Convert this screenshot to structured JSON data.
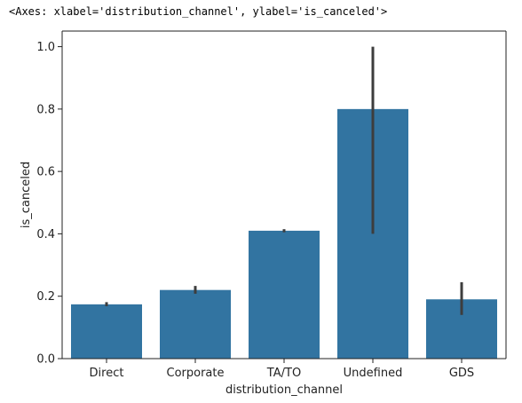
{
  "header": {
    "repr": "<Axes: xlabel='distribution_channel', ylabel='is_canceled'>"
  },
  "chart_data": {
    "type": "bar",
    "categories": [
      "Direct",
      "Corporate",
      "TA/TO",
      "Undefined",
      "GDS"
    ],
    "values": [
      0.174,
      0.22,
      0.41,
      0.8,
      0.19
    ],
    "error_bars": [
      [
        0.168,
        0.181
      ],
      [
        0.208,
        0.233
      ],
      [
        0.405,
        0.415
      ],
      [
        0.4,
        1.0
      ],
      [
        0.14,
        0.245
      ]
    ],
    "title": "",
    "xlabel": "distribution_channel",
    "ylabel": "is_canceled",
    "ylim": [
      0,
      1.05
    ],
    "yticks": [
      "0.0",
      "0.2",
      "0.4",
      "0.6",
      "0.8",
      "1.0"
    ],
    "grid": false,
    "colors": {
      "bar": "#3274a1",
      "error": "#3d3d3d",
      "axis": "#222222"
    }
  }
}
